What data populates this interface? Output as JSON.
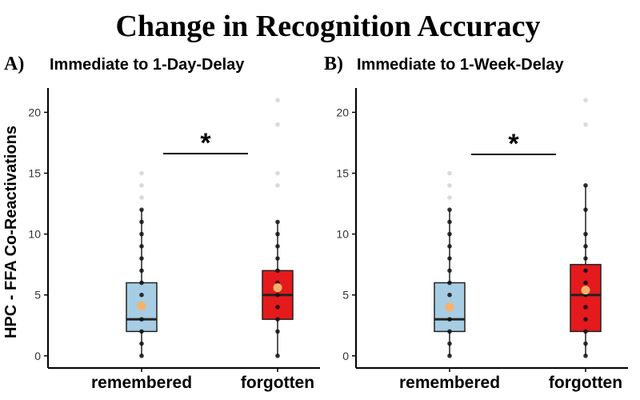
{
  "title": "Change in Recognition Accuracy",
  "y_axis_label": "HPC - FFA Co-Reactivations",
  "significance_mark": "*",
  "colors": {
    "remembered_fill": "#a6cde3",
    "forgotten_fill": "#e41a1c",
    "mean_marker": "#f7b26a",
    "point": "#111111",
    "outlier_point": "#bbbbbb"
  },
  "chart_data": [
    {
      "type": "box",
      "panel_label": "A)",
      "title": "Immediate to 1-Day-Delay",
      "ylabel": "HPC - FFA Co-Reactivations",
      "categories": [
        "remembered",
        "forgotten"
      ],
      "ylim": [
        -1,
        22
      ],
      "yticks": [
        0,
        5,
        10,
        15,
        20
      ],
      "grid": false,
      "significance": "*",
      "series": [
        {
          "q1": 2,
          "median": 3,
          "q3": 6,
          "whisker_low": 0,
          "whisker_high": 12,
          "mean": 4.1,
          "points": [
            0,
            1,
            2,
            3,
            4,
            5,
            6,
            7,
            8,
            9,
            10,
            11,
            12
          ],
          "outliers": [
            13,
            14,
            15
          ]
        },
        {
          "q1": 3,
          "median": 5,
          "q3": 7,
          "whisker_low": 0,
          "whisker_high": 11,
          "mean": 5.6,
          "points": [
            0,
            2,
            3,
            4,
            5,
            6,
            7,
            8,
            9,
            10,
            11
          ],
          "outliers": [
            14,
            15,
            19,
            21
          ]
        }
      ]
    },
    {
      "type": "box",
      "panel_label": "B)",
      "title": "Immediate to 1-Week-Delay",
      "ylabel": "",
      "categories": [
        "remembered",
        "forgotten"
      ],
      "ylim": [
        -1,
        22
      ],
      "yticks": [
        0,
        5,
        10,
        15,
        20
      ],
      "grid": false,
      "significance": "*",
      "series": [
        {
          "q1": 2,
          "median": 3,
          "q3": 6,
          "whisker_low": 0,
          "whisker_high": 12,
          "mean": 4.0,
          "points": [
            0,
            1,
            2,
            3,
            4,
            5,
            6,
            7,
            8,
            9,
            10,
            11,
            12
          ],
          "outliers": [
            13,
            14,
            15
          ]
        },
        {
          "q1": 2,
          "median": 5,
          "q3": 7.5,
          "whisker_low": 0,
          "whisker_high": 14,
          "mean": 5.4,
          "points": [
            0,
            1,
            2,
            3,
            4,
            5,
            6,
            7,
            8,
            9,
            10,
            12,
            14
          ],
          "outliers": [
            19,
            21
          ]
        }
      ]
    }
  ]
}
